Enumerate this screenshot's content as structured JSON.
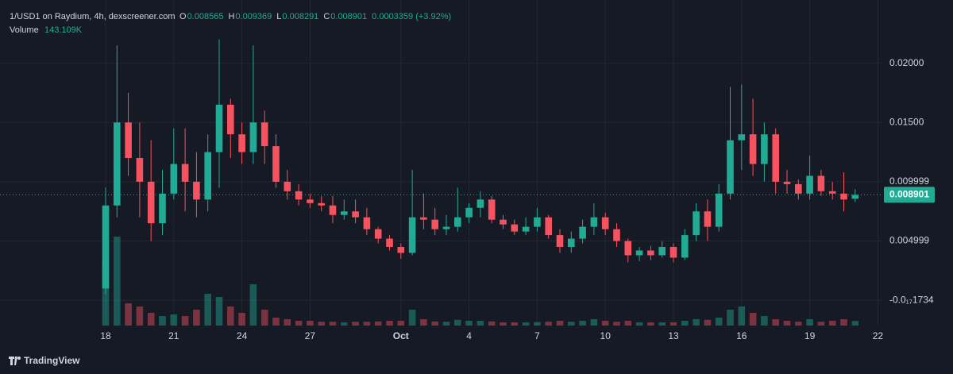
{
  "chart_data": {
    "type": "candlestick",
    "title": "1/USD1 on Raydium, 4h, dexscreener.com",
    "ohlc": [
      {
        "label": "O",
        "value": "0.008565"
      },
      {
        "label": "H",
        "value": "0.009369"
      },
      {
        "label": "L",
        "value": "0.008291"
      },
      {
        "label": "C",
        "value": "0.008901"
      }
    ],
    "change": "0.0003359 (+3.92%)",
    "volume_label": "Volume",
    "volume_value": "143.109K",
    "brand": "TradingView",
    "up_color": "#22ab94",
    "down_color": "#f7525f",
    "grid": true,
    "categories": [
      "18",
      null,
      null,
      null,
      null,
      null,
      "21",
      null,
      null,
      null,
      null,
      null,
      "24",
      null,
      null,
      null,
      null,
      null,
      "27",
      null,
      null,
      null,
      null,
      null,
      null,
      null,
      "Oct",
      null,
      null,
      null,
      null,
      null,
      "4",
      null,
      null,
      null,
      null,
      null,
      "7",
      null,
      null,
      null,
      null,
      null,
      "10",
      null,
      null,
      null,
      null,
      null,
      "13",
      null,
      null,
      null,
      null,
      null,
      "16",
      null,
      null,
      null,
      null,
      null,
      "19",
      null,
      null,
      null,
      null,
      null,
      "22",
      null
    ],
    "open": [
      0.001,
      0.008,
      0.015,
      0.012,
      0.01,
      0.0065,
      0.009,
      0.0115,
      0.01,
      0.0085,
      0.0125,
      0.0165,
      0.014,
      0.0125,
      0.015,
      0.013,
      0.01,
      0.0092,
      0.0085,
      0.0082,
      0.008,
      0.0072,
      0.0075,
      0.007,
      0.006,
      0.0052,
      0.0045,
      0.004,
      0.007,
      0.0068,
      0.006,
      0.0062,
      0.007,
      0.0078,
      0.0085,
      0.0068,
      0.0064,
      0.0058,
      0.0062,
      0.007,
      0.0055,
      0.0045,
      0.0052,
      0.0062,
      0.007,
      0.006,
      0.005,
      0.0038,
      0.0042,
      0.0038,
      0.0045,
      0.0036,
      0.0055,
      0.0075,
      0.0062,
      0.009,
      0.0135,
      0.014,
      0.0115,
      0.014,
      0.01,
      0.0098,
      0.009,
      0.0105,
      0.0092,
      0.009,
      0.008565,
      null,
      null,
      null
    ],
    "high": [
      0.0095,
      0.0215,
      0.0175,
      0.015,
      0.0135,
      0.011,
      0.0145,
      0.0145,
      0.0125,
      0.014,
      0.022,
      0.017,
      0.015,
      0.0215,
      0.016,
      0.014,
      0.011,
      0.0098,
      0.009,
      0.0088,
      0.0088,
      0.0085,
      0.0085,
      0.0078,
      0.0062,
      0.0055,
      0.0048,
      0.011,
      0.009,
      0.0078,
      0.0072,
      0.0095,
      0.0082,
      0.0092,
      0.0088,
      0.0072,
      0.0068,
      0.007,
      0.0078,
      0.0072,
      0.006,
      0.0058,
      0.0068,
      0.0082,
      0.0074,
      0.0065,
      0.0052,
      0.0045,
      0.0046,
      0.005,
      0.0048,
      0.006,
      0.0082,
      0.0085,
      0.0098,
      0.018,
      0.0182,
      0.017,
      0.015,
      0.0145,
      0.011,
      0.0102,
      0.0122,
      0.011,
      0.01,
      0.0108,
      0.009369,
      null,
      null,
      null
    ],
    "low": [
      0.0005,
      0.007,
      0.0105,
      0.007,
      0.005,
      0.0055,
      0.0085,
      0.0075,
      0.007,
      0.0075,
      0.0095,
      0.012,
      0.0115,
      0.0115,
      0.0115,
      0.0095,
      0.0085,
      0.008,
      0.0078,
      0.0075,
      0.0065,
      0.0068,
      0.0065,
      0.0055,
      0.0048,
      0.0042,
      0.0035,
      0.0038,
      0.006,
      0.0055,
      0.0055,
      0.0058,
      0.0065,
      0.007,
      0.0065,
      0.006,
      0.0055,
      0.0055,
      0.0058,
      0.0052,
      0.004,
      0.004,
      0.0048,
      0.0055,
      0.0055,
      0.0045,
      0.0032,
      0.0033,
      0.0034,
      0.0036,
      0.0032,
      0.0034,
      0.005,
      0.005,
      0.0058,
      0.0085,
      0.011,
      0.0105,
      0.01,
      0.009,
      0.009,
      0.0085,
      0.0085,
      0.0088,
      0.0085,
      0.0075,
      0.008291,
      null,
      null,
      null
    ],
    "close": [
      0.008,
      0.015,
      0.012,
      0.01,
      0.0065,
      0.009,
      0.0115,
      0.01,
      0.0085,
      0.0125,
      0.0165,
      0.014,
      0.0125,
      0.015,
      0.013,
      0.01,
      0.0092,
      0.0085,
      0.0082,
      0.008,
      0.0072,
      0.0075,
      0.007,
      0.006,
      0.0052,
      0.0045,
      0.004,
      0.007,
      0.0068,
      0.006,
      0.0062,
      0.007,
      0.0078,
      0.0085,
      0.0068,
      0.0064,
      0.0058,
      0.0062,
      0.007,
      0.0055,
      0.0045,
      0.0052,
      0.0062,
      0.007,
      0.006,
      0.005,
      0.0038,
      0.0042,
      0.0038,
      0.0045,
      0.0036,
      0.0055,
      0.0075,
      0.0062,
      0.009,
      0.0135,
      0.014,
      0.0115,
      0.014,
      0.01,
      0.0098,
      0.009,
      0.0105,
      0.0092,
      0.009,
      0.0085,
      0.008901,
      null,
      null,
      null
    ],
    "volume": [
      2000,
      2800,
      700,
      600,
      400,
      300,
      350,
      300,
      500,
      1000,
      900,
      600,
      400,
      1300,
      500,
      250,
      200,
      150,
      150,
      120,
      120,
      100,
      120,
      120,
      130,
      150,
      150,
      500,
      200,
      130,
      120,
      180,
      150,
      150,
      130,
      100,
      100,
      100,
      110,
      120,
      150,
      120,
      150,
      200,
      150,
      120,
      150,
      100,
      100,
      100,
      100,
      150,
      200,
      180,
      250,
      500,
      600,
      400,
      300,
      200,
      150,
      120,
      200,
      120,
      150,
      200,
      143.109,
      null,
      null,
      null
    ],
    "volume_lim": [
      0,
      3000
    ],
    "ylim": [
      -0.00213,
      0.02533
    ],
    "yticks": [
      {
        "value": -1.734e-18,
        "label": "-0.0₁₇1734"
      },
      {
        "value": 0.004999,
        "label": "0.004999"
      },
      {
        "value": 0.009999,
        "label": "0.009999"
      },
      {
        "value": 0.015,
        "label": "0.01500"
      },
      {
        "value": 0.02,
        "label": "0.02000"
      }
    ],
    "last_price": {
      "value": 0.008901,
      "label": "0.008901"
    }
  }
}
